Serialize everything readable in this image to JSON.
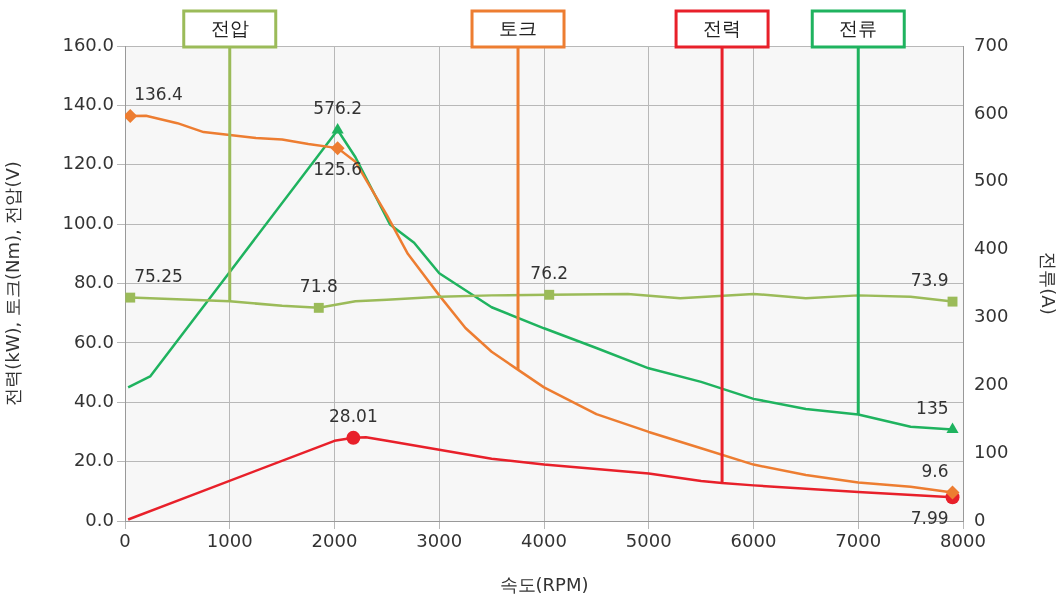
{
  "chart_data": {
    "type": "line",
    "xlabel": "속도(RPM)",
    "ylabel": "전력(kW), 토크(Nm), 전압(V)",
    "y2label": "전류(A)",
    "xlim": [
      0,
      8000
    ],
    "xticks": [
      0,
      1000,
      2000,
      3000,
      4000,
      5000,
      6000,
      7000,
      8000
    ],
    "ylim": [
      0,
      160
    ],
    "yticks": [
      {
        "value": 0,
        "label": "0.0"
      },
      {
        "value": 20,
        "label": "20.0"
      },
      {
        "value": 40,
        "label": "40.0"
      },
      {
        "value": 60,
        "label": "60.0"
      },
      {
        "value": 80,
        "label": "80.0"
      },
      {
        "value": 100,
        "label": "100.0"
      },
      {
        "value": 120,
        "label": "120.0"
      },
      {
        "value": 140,
        "label": "140.0"
      },
      {
        "value": 160,
        "label": "160.0"
      }
    ],
    "y2lim": [
      0,
      700
    ],
    "y2ticks": [
      0,
      100,
      200,
      300,
      400,
      500,
      600,
      700
    ],
    "grid": true,
    "legend": false,
    "line_style": "solid",
    "series": [
      {
        "name": "전압",
        "color": "#9bbb59",
        "x": [
          50,
          1000,
          1500,
          1850,
          2200,
          2500,
          3000,
          3500,
          4050,
          4800,
          5300,
          6000,
          6500,
          7000,
          7500,
          7900
        ],
        "values": [
          75.25,
          74,
          72.5,
          71.8,
          74,
          74.5,
          75.5,
          76,
          76.2,
          76.5,
          75,
          76.5,
          75,
          76,
          75.5,
          73.9
        ],
        "value_labels": [
          "75.25",
          null,
          null,
          "71.8",
          null,
          null,
          null,
          null,
          "76.2",
          null,
          null,
          null,
          null,
          null,
          null,
          "73.9"
        ]
      },
      {
        "name": "토크",
        "color": "#ed7d31",
        "x": [
          50,
          200,
          500,
          750,
          1000,
          1250,
          1500,
          1750,
          2030,
          2200,
          2300,
          2500,
          2700,
          3000,
          3250,
          3500,
          3750,
          4000,
          4500,
          5000,
          5500,
          6000,
          6500,
          7000,
          7500,
          7900
        ],
        "values": [
          136.4,
          136.5,
          134,
          131,
          130,
          129,
          128.5,
          127,
          125.6,
          121,
          115,
          103,
          90,
          76,
          65,
          57,
          51,
          45,
          36,
          30,
          24.5,
          19,
          15.5,
          13,
          11.5,
          9.6
        ],
        "value_labels": [
          "136.4",
          null,
          null,
          null,
          null,
          null,
          null,
          null,
          "125.6",
          null,
          null,
          null,
          null,
          null,
          null,
          null,
          null,
          null,
          null,
          null,
          null,
          null,
          null,
          null,
          null,
          "9.6"
        ]
      },
      {
        "name": "전력",
        "color": "#e8202a",
        "x": [
          30,
          2000,
          2180,
          2300,
          2500,
          3000,
          3500,
          4000,
          5000,
          5500,
          5700,
          6000,
          7000,
          7900
        ],
        "values": [
          0.5,
          27,
          28.01,
          28.2,
          27,
          24,
          21,
          19,
          16,
          13.5,
          12.8,
          12,
          9.8,
          7.99
        ],
        "value_labels": [
          null,
          null,
          "28.01",
          null,
          null,
          null,
          null,
          null,
          null,
          null,
          null,
          null,
          null,
          "7.99"
        ]
      },
      {
        "name": "전류",
        "color": "#1fb35f",
        "axis": "y2",
        "x": [
          30,
          240,
          1000,
          2030,
          2200,
          2530,
          2760,
          3000,
          3500,
          4000,
          4500,
          5000,
          5500,
          6000,
          6500,
          7000,
          7500,
          7900
        ],
        "values": [
          197,
          213,
          367,
          576.2,
          536,
          437,
          410,
          365,
          315,
          284,
          255,
          225,
          205,
          180,
          165,
          157,
          139,
          135
        ],
        "value_labels": [
          null,
          null,
          null,
          "576.2",
          null,
          null,
          null,
          null,
          null,
          null,
          null,
          null,
          null,
          null,
          null,
          null,
          null,
          "135"
        ]
      }
    ]
  }
}
